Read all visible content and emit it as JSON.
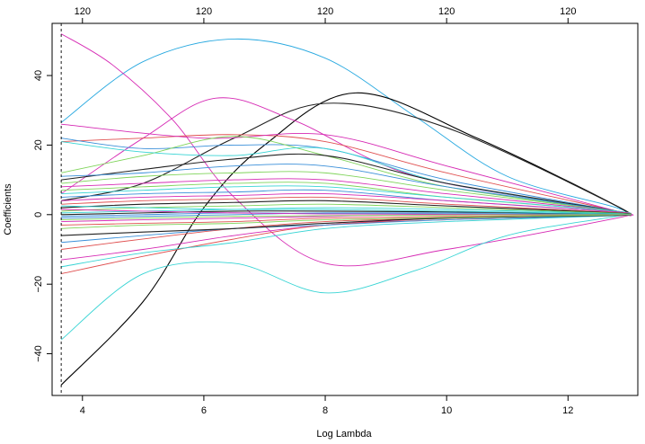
{
  "chart_data": {
    "type": "line",
    "title": "",
    "xlabel": "Log Lambda",
    "ylabel": "Coefficients",
    "xlim": [
      3.5,
      13.15
    ],
    "ylim": [
      -52,
      55
    ],
    "x_ticks": [
      4,
      6,
      8,
      10,
      12
    ],
    "y_ticks": [
      -40,
      -20,
      0,
      20,
      40
    ],
    "top_axis": {
      "positions": [
        4,
        6,
        8,
        10,
        12
      ],
      "labels": [
        "120",
        "120",
        "120",
        "120",
        "120"
      ]
    },
    "vline": {
      "x": 3.65,
      "style": "dashed"
    },
    "grid": false,
    "legend": "none",
    "series": [
      {
        "color": "#29a9e0",
        "x": [
          3.65,
          5,
          6.5,
          8,
          9.5,
          11,
          12.8,
          12.9
        ],
        "values": [
          26.5,
          44,
          50.5,
          45,
          28,
          11,
          2,
          0
        ]
      },
      {
        "color": "#d62ab4",
        "x": [
          3.65,
          4.5,
          5.5,
          6.5,
          8,
          10,
          12.8,
          12.9
        ],
        "values": [
          52,
          43,
          27,
          5,
          -14,
          -10,
          -1,
          0
        ]
      },
      {
        "color": "#000000",
        "x": [
          3.65,
          5,
          6,
          7,
          8.5,
          10.5,
          12.8,
          12.9
        ],
        "values": [
          -49,
          -25,
          2,
          20,
          35,
          22,
          2.5,
          0
        ]
      },
      {
        "color": "#222222",
        "x": [
          3.65,
          5,
          6.5,
          8,
          10,
          12.8,
          12.9
        ],
        "values": [
          4,
          9,
          22,
          32,
          25,
          2.5,
          0
        ]
      },
      {
        "color": "#d62ab4",
        "x": [
          3.65,
          5,
          6.2,
          7.5,
          9.5,
          12.8,
          12.9
        ],
        "values": [
          6,
          22,
          33.5,
          27,
          11,
          1,
          0
        ]
      },
      {
        "color": "#37d4d4",
        "x": [
          3.65,
          5,
          6.5,
          8,
          9.5,
          11,
          12.8,
          12.9
        ],
        "values": [
          -36,
          -17,
          -14,
          -22.5,
          -16,
          -6,
          -0.5,
          0
        ]
      },
      {
        "color": "#e05050",
        "x": [
          3.65,
          5,
          6.5,
          8,
          10,
          12.8,
          12.9
        ],
        "values": [
          21,
          22,
          23,
          21,
          12,
          1,
          0
        ]
      },
      {
        "color": "#d62ab4",
        "x": [
          3.65,
          6,
          8,
          10,
          12.8,
          12.9
        ],
        "values": [
          26,
          22,
          23,
          14,
          1,
          0
        ]
      },
      {
        "color": "#3a8fd9",
        "x": [
          3.65,
          5,
          6.5,
          8,
          10,
          12.8,
          12.9
        ],
        "values": [
          22,
          19,
          20,
          19,
          10,
          1,
          0
        ]
      },
      {
        "color": "#7fd45a",
        "x": [
          3.65,
          5,
          6.5,
          8,
          10,
          12.8,
          12.9
        ],
        "values": [
          12,
          17,
          22.5,
          17,
          8,
          1,
          0
        ]
      },
      {
        "color": "#37d4d4",
        "x": [
          3.65,
          5,
          6.5,
          8,
          10,
          12.8,
          12.9
        ],
        "values": [
          21,
          18,
          17,
          19,
          9,
          1,
          0
        ]
      },
      {
        "color": "#222222",
        "x": [
          3.65,
          5,
          6.5,
          8,
          10,
          12.8,
          12.9
        ],
        "values": [
          10,
          13,
          16,
          17,
          9,
          1,
          0
        ]
      },
      {
        "color": "#3a8fd9",
        "x": [
          3.65,
          5,
          6.5,
          8,
          10,
          12.8,
          12.9
        ],
        "values": [
          11,
          12,
          14,
          14,
          8,
          1,
          0
        ]
      },
      {
        "color": "#7fd45a",
        "x": [
          3.65,
          5,
          6.5,
          8,
          10,
          12.8,
          12.9
        ],
        "values": [
          9,
          11,
          12,
          12,
          7,
          1,
          0
        ]
      },
      {
        "color": "#d62ab4",
        "x": [
          3.65,
          5,
          6.5,
          8,
          10,
          12.8,
          12.9
        ],
        "values": [
          8,
          9,
          10,
          10,
          6,
          1,
          0
        ]
      },
      {
        "color": "#e05050",
        "x": [
          3.65,
          5,
          6.5,
          8,
          10,
          12.8,
          12.9
        ],
        "values": [
          -10,
          -7,
          -4,
          -2,
          -1,
          -0.2,
          0
        ]
      },
      {
        "color": "#d62ab4",
        "x": [
          3.65,
          5,
          6.5,
          8,
          10,
          12.8,
          12.9
        ],
        "values": [
          -13,
          -10,
          -6,
          -3,
          -1,
          -0.2,
          0
        ]
      },
      {
        "color": "#e05050",
        "x": [
          3.65,
          5,
          6.5,
          8,
          10,
          12.8,
          12.9
        ],
        "values": [
          -17,
          -12,
          -7,
          -3,
          -1.5,
          -0.3,
          0
        ]
      },
      {
        "color": "#37d4d4",
        "x": [
          3.65,
          5,
          6.5,
          8,
          10,
          12.8,
          12.9
        ],
        "values": [
          -15,
          -11,
          -8,
          -4,
          -2,
          -0.3,
          0
        ]
      },
      {
        "color": "#3a8fd9",
        "x": [
          3.65,
          5,
          6.5,
          8,
          10,
          12.8,
          12.9
        ],
        "values": [
          -8,
          -6,
          -4,
          -3,
          -1.5,
          -0.2,
          0
        ]
      },
      {
        "color": "#222222",
        "x": [
          3.65,
          5,
          6.5,
          8,
          10,
          12.8,
          12.9
        ],
        "values": [
          -6,
          -5,
          -4,
          -2.5,
          -1,
          -0.2,
          0
        ]
      },
      {
        "color": "#7fd45a",
        "x": [
          3.65,
          5,
          6.5,
          8,
          10,
          12.8,
          12.9
        ],
        "values": [
          7,
          8,
          9,
          9,
          5,
          1,
          0
        ]
      },
      {
        "color": "#37d4d4",
        "x": [
          3.65,
          5,
          6.5,
          8,
          10,
          12.8,
          12.9
        ],
        "values": [
          6,
          7,
          8,
          8,
          5,
          1,
          0
        ]
      },
      {
        "color": "#3a8fd9",
        "x": [
          3.65,
          5,
          6.5,
          8,
          10,
          12.8,
          12.9
        ],
        "values": [
          5,
          6,
          6.5,
          7,
          4,
          0.8,
          0
        ]
      },
      {
        "color": "#d62ab4",
        "x": [
          3.65,
          5,
          6.5,
          8,
          10,
          12.8,
          12.9
        ],
        "values": [
          4,
          5,
          5.5,
          6,
          4,
          0.8,
          0
        ]
      },
      {
        "color": "#e05050",
        "x": [
          3.65,
          5,
          6.5,
          8,
          10,
          12.8,
          12.9
        ],
        "values": [
          3,
          4,
          4.5,
          5,
          3,
          0.6,
          0
        ]
      },
      {
        "color": "#222222",
        "x": [
          3.65,
          5,
          6.5,
          8,
          10,
          12.8,
          12.9
        ],
        "values": [
          2,
          3,
          3.5,
          4,
          2.5,
          0.5,
          0
        ]
      },
      {
        "color": "#7fd45a",
        "x": [
          3.65,
          5,
          6.5,
          8,
          10,
          12.8,
          12.9
        ],
        "values": [
          1,
          2,
          2.5,
          3,
          2,
          0.4,
          0
        ]
      },
      {
        "color": "#37d4d4",
        "x": [
          3.65,
          5,
          6.5,
          8,
          10,
          12.8,
          12.9
        ],
        "values": [
          0.5,
          1,
          1.5,
          2,
          1.5,
          0.3,
          0
        ]
      },
      {
        "color": "#3a8fd9",
        "x": [
          3.65,
          5,
          6.5,
          8,
          10,
          12.8,
          12.9
        ],
        "values": [
          -1,
          -0.5,
          0,
          0.5,
          0.5,
          0.1,
          0
        ]
      },
      {
        "color": "#d62ab4",
        "x": [
          3.65,
          5,
          6.5,
          8,
          10,
          12.8,
          12.9
        ],
        "values": [
          -2,
          -1.5,
          -1,
          -0.5,
          0,
          0,
          0
        ]
      },
      {
        "color": "#e05050",
        "x": [
          3.65,
          5,
          6.5,
          8,
          10,
          12.8,
          12.9
        ],
        "values": [
          -3,
          -2.5,
          -2,
          -1,
          -0.5,
          -0.1,
          0
        ]
      },
      {
        "color": "#7fd45a",
        "x": [
          3.65,
          5,
          6.5,
          8,
          10,
          12.8,
          12.9
        ],
        "values": [
          -4,
          -3,
          -2.5,
          -1.5,
          -0.8,
          -0.1,
          0
        ]
      },
      {
        "color": "#222222",
        "x": [
          3.65,
          5,
          6.5,
          8,
          10,
          12.8,
          12.9
        ],
        "values": [
          0,
          0.5,
          1,
          1,
          0.8,
          0.2,
          0
        ]
      },
      {
        "color": "#37d4d4",
        "x": [
          3.65,
          5,
          6.5,
          8,
          10,
          12.8,
          12.9
        ],
        "values": [
          2.5,
          2,
          1.5,
          1.5,
          1,
          0.2,
          0
        ]
      },
      {
        "color": "#3a8fd9",
        "x": [
          3.65,
          5,
          6.5,
          8,
          10,
          12.8,
          12.9
        ],
        "values": [
          -0.5,
          0,
          0.5,
          0.3,
          0.2,
          0,
          0
        ]
      },
      {
        "color": "#d62ab4",
        "x": [
          3.65,
          5,
          6.5,
          8,
          10,
          12.8,
          12.9
        ],
        "values": [
          1.5,
          1,
          0.5,
          0.2,
          0.1,
          0,
          0
        ]
      },
      {
        "color": "#7fd45a",
        "x": [
          3.65,
          5,
          6.5,
          8,
          10,
          12.8,
          12.9
        ],
        "values": [
          -1.5,
          -1,
          -0.5,
          -0.3,
          -0.1,
          0,
          0
        ]
      }
    ]
  }
}
